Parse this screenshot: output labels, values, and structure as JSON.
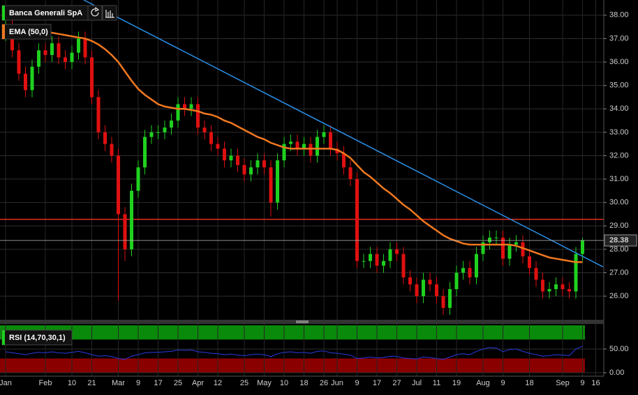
{
  "chart_data": {
    "type": "candlestick",
    "title": "Banca Generali SpA",
    "categories": [
      "Jan",
      null,
      null,
      null,
      null,
      null,
      "Feb",
      null,
      null,
      null,
      "10",
      null,
      null,
      "21",
      null,
      null,
      null,
      "Mar",
      null,
      null,
      "9",
      null,
      null,
      "17",
      null,
      null,
      "25",
      null,
      null,
      "Apr",
      null,
      null,
      "12",
      null,
      null,
      null,
      "25",
      null,
      null,
      "May",
      null,
      null,
      "10",
      null,
      null,
      "18",
      null,
      null,
      "26",
      null,
      "Jun",
      null,
      null,
      "9",
      null,
      null,
      "17",
      null,
      null,
      "27",
      null,
      null,
      "Jul",
      null,
      null,
      "11",
      null,
      null,
      "19",
      null,
      null,
      null,
      "Aug",
      null,
      null,
      "9",
      null,
      null,
      null,
      "18",
      null,
      null,
      null,
      null,
      "Sep",
      null,
      null,
      "9",
      null,
      "16",
      null
    ],
    "open": [
      37.2,
      37.5,
      36.5,
      35.5,
      34.8,
      35.8,
      36.5,
      36.3,
      36.8,
      36.2,
      36,
      36.4,
      37,
      36.2,
      34.5,
      33,
      32.5,
      32,
      29.5,
      28,
      30.5,
      31.5,
      32.8,
      33,
      33,
      33.2,
      33.5,
      34.2,
      34,
      34.2,
      33.2,
      33,
      32.5,
      32.3,
      31.8,
      32,
      31.6,
      31.2,
      31.5,
      31.8,
      31.5,
      30,
      31.8,
      32.5,
      32.6,
      32.3,
      32.5,
      32,
      32.8,
      33,
      32.3,
      32.1,
      31.5,
      31,
      27.5,
      27.5,
      27.8,
      27.3,
      27.5,
      28,
      27.8,
      26.8,
      26.5,
      26,
      26.7,
      26.5,
      26,
      25.5,
      26.3,
      27,
      27.2,
      26.8,
      27.8,
      28.3,
      28.5,
      28.5,
      27.6,
      28.2,
      28.3,
      27.7,
      27.2,
      26.7,
      26.2,
      26.3,
      26.5,
      26.3,
      26.2,
      27.8,
      null,
      null,
      null
    ],
    "high": [
      37.9,
      37.8,
      36.8,
      35.8,
      36.1,
      36.8,
      36.8,
      37.1,
      37.1,
      36.5,
      36.7,
      37.3,
      37.3,
      36.5,
      34.8,
      33.3,
      32.8,
      32.3,
      29.8,
      30.8,
      31.8,
      33.1,
      33.3,
      33.3,
      33.5,
      33.8,
      34.5,
      34.5,
      34.5,
      34.5,
      33.5,
      33.3,
      32.8,
      32.6,
      32.3,
      32.3,
      31.9,
      31.8,
      32.1,
      32.1,
      31.8,
      32.1,
      32.8,
      32.9,
      32.9,
      32.8,
      32.8,
      33.1,
      33.3,
      33.3,
      32.6,
      32.4,
      31.8,
      31.3,
      27.8,
      28.1,
      28.1,
      27.8,
      28.3,
      28.3,
      28.1,
      27.1,
      26.8,
      27,
      27,
      26.8,
      26.3,
      26.6,
      27.3,
      27.5,
      27.5,
      28.1,
      28.6,
      28.8,
      28.8,
      28.8,
      28.5,
      28.6,
      28.6,
      28,
      27.5,
      27,
      26.6,
      26.8,
      26.8,
      26.6,
      28.1,
      28.5,
      null,
      null,
      null
    ],
    "low": [
      36.9,
      36.2,
      35.2,
      34.5,
      34.5,
      35.5,
      36,
      36,
      35.9,
      35.7,
      35.7,
      36.1,
      35.9,
      34.2,
      32.7,
      32.2,
      31.7,
      25.8,
      27.5,
      27.7,
      30.2,
      31.2,
      32.5,
      32.7,
      32.7,
      32.9,
      33.2,
      33.7,
      33.7,
      32.9,
      32.7,
      32.2,
      32,
      31.5,
      31.5,
      31.3,
      30.9,
      30.9,
      31.2,
      31.2,
      29.4,
      29.7,
      31.5,
      32.2,
      32,
      32,
      31.7,
      31.7,
      32.5,
      32,
      31.8,
      31.2,
      30.7,
      27.2,
      27.2,
      27.2,
      27,
      27,
      27.2,
      27.5,
      26.5,
      26.2,
      25.7,
      25.7,
      26.2,
      25.7,
      25.2,
      25.2,
      26,
      26.7,
      26.5,
      26.5,
      27.5,
      28,
      28.2,
      27.3,
      27.3,
      27.9,
      27.4,
      26.9,
      26.4,
      25.9,
      25.9,
      26,
      26,
      25.9,
      25.9,
      27.5,
      null,
      null,
      null
    ],
    "close": [
      37.5,
      36.5,
      35.5,
      34.8,
      35.8,
      36.5,
      36.3,
      36.8,
      36.2,
      36,
      36.4,
      37,
      36.2,
      34.5,
      33,
      32.5,
      32,
      29.5,
      28,
      30.5,
      31.5,
      32.8,
      33,
      33,
      33.2,
      33.5,
      34.2,
      34,
      34.2,
      33.2,
      33,
      32.5,
      32.3,
      31.8,
      32,
      31.6,
      31.2,
      31.5,
      31.8,
      31.5,
      30,
      31.8,
      32.5,
      32.6,
      32.3,
      32.5,
      32,
      32.8,
      33,
      32.3,
      32.1,
      31.5,
      31,
      27.5,
      27.5,
      27.8,
      27.3,
      27.5,
      28,
      27.8,
      26.8,
      26.5,
      26,
      26.7,
      26.5,
      26,
      25.5,
      26.3,
      27,
      27.2,
      26.8,
      27.8,
      28.3,
      28.5,
      28.5,
      27.6,
      28.2,
      28.3,
      27.7,
      27.2,
      26.7,
      26.2,
      26.3,
      26.5,
      26.3,
      26.2,
      27.8,
      28.38,
      null,
      null,
      null
    ],
    "up_color": "#1fd11f",
    "down_color": "#e01010",
    "ylim": [
      25.02,
      38.65
    ],
    "yticks": [
      {
        "value": 26,
        "label": "26.00"
      },
      {
        "value": 27,
        "label": "27.00"
      },
      {
        "value": 28,
        "label": "28.00"
      },
      {
        "value": 29,
        "label": "29.00"
      },
      {
        "value": 30,
        "label": "30.00"
      },
      {
        "value": 31,
        "label": "31.00"
      },
      {
        "value": 32,
        "label": "32.00"
      },
      {
        "value": 33,
        "label": "33.00"
      },
      {
        "value": 34,
        "label": "34.00"
      },
      {
        "value": 35,
        "label": "35.00"
      },
      {
        "value": 36,
        "label": "36.00"
      },
      {
        "value": 37,
        "label": "37.00"
      },
      {
        "value": 38,
        "label": "38.00"
      }
    ],
    "grid": true,
    "ema": {
      "name": "EMA (50,0)",
      "color": "#f07820",
      "values": [
        37.6,
        37.55,
        37.5,
        37.45,
        37.4,
        37.35,
        37.3,
        37.25,
        37.2,
        37.15,
        37.1,
        37.05,
        37.0,
        36.9,
        36.75,
        36.55,
        36.3,
        36.0,
        35.6,
        35.2,
        34.85,
        34.6,
        34.4,
        34.2,
        34.1,
        34.05,
        34.0,
        34.0,
        33.95,
        33.9,
        33.8,
        33.75,
        33.65,
        33.5,
        33.4,
        33.25,
        33.1,
        32.95,
        32.8,
        32.7,
        32.55,
        32.45,
        32.35,
        32.3,
        32.3,
        32.3,
        32.3,
        32.3,
        32.3,
        32.3,
        32.25,
        32.1,
        31.9,
        31.6,
        31.3,
        31.1,
        30.85,
        30.6,
        30.4,
        30.15,
        29.9,
        29.7,
        29.45,
        29.2,
        29.0,
        28.8,
        28.6,
        28.45,
        28.35,
        28.25,
        28.2,
        28.2,
        28.2,
        28.2,
        28.2,
        28.2,
        28.2,
        28.15,
        28.05,
        27.95,
        27.85,
        27.75,
        27.65,
        27.6,
        27.55,
        27.5,
        27.45,
        27.45,
        null,
        null,
        null
      ]
    },
    "trendline": {
      "from": [
        11.8,
        38.65
      ],
      "to": [
        90.1,
        27.25
      ],
      "color": "#2a90e8"
    },
    "hline": {
      "value": 29.28,
      "color": "#e03020"
    },
    "rsi": {
      "name": "RSI (14,70,30,1)",
      "color": "#2a3ae0",
      "values": [
        44,
        42,
        40,
        38,
        41,
        43,
        42,
        44,
        42,
        41,
        43,
        45,
        42,
        38,
        35,
        36,
        34,
        30,
        28,
        35,
        38,
        42,
        43,
        43,
        44,
        45,
        48,
        47,
        48,
        44,
        43,
        41,
        40,
        38,
        39,
        37,
        36,
        38,
        39,
        38,
        34,
        40,
        43,
        44,
        42,
        43,
        41,
        45,
        46,
        42,
        41,
        39,
        37,
        30,
        31,
        33,
        31,
        32,
        35,
        34,
        31,
        30,
        29,
        33,
        32,
        30,
        28,
        33,
        38,
        40,
        38,
        45,
        50,
        53,
        52,
        44,
        49,
        50,
        45,
        41,
        38,
        35,
        36,
        38,
        37,
        36,
        50,
        56,
        null,
        null,
        null
      ],
      "ylim": [
        -7.4,
        102.9
      ],
      "yticks": [
        {
          "value": 0,
          "label": "0.00"
        },
        {
          "value": 50,
          "label": "50.00"
        }
      ],
      "overbought": [
        70,
        100
      ],
      "overbought_color": "#0a8a0a",
      "oversold": [
        0,
        30
      ],
      "oversold_color": "#8a0000"
    }
  }
}
